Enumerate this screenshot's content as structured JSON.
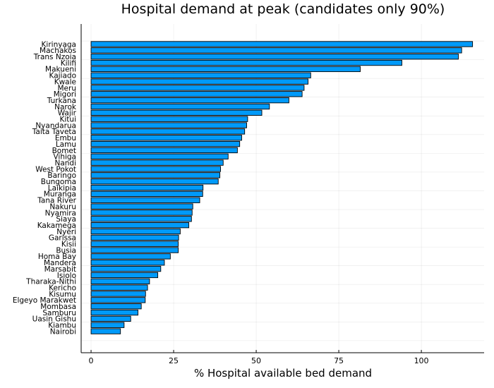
{
  "chart_data": {
    "type": "bar",
    "orientation": "horizontal",
    "title": "Hospital demand at peak (candidates only 90%)",
    "xlabel": "% Hospital available bed demand",
    "ylabel": "",
    "xlim": [
      -3,
      119
    ],
    "xticks": [
      0,
      25,
      50,
      75,
      100
    ],
    "grid": true,
    "legend": "none",
    "bar_color": "#009af9",
    "categories": [
      "Kirinyaga",
      "Machakos",
      "Trans Nzoia",
      "Kilifi",
      "Makueni",
      "Kajiado",
      "Kwale",
      "Meru",
      "Migori",
      "Turkana",
      "Narok",
      "Wajir",
      "Kitui",
      "Nyandarua",
      "Taita Taveta",
      "Embu",
      "Lamu",
      "Bomet",
      "Vihiga",
      "Nandi",
      "West Pokot",
      "Baringo",
      "Bungoma",
      "Laikipia",
      "Muranga",
      "Tana River",
      "Nakuru",
      "Nyamira",
      "Siaya",
      "Kakamega",
      "Nyeri",
      "Garissa",
      "Kisii",
      "Busia",
      "Homa Bay",
      "Mandera",
      "Marsabit",
      "Isiolo",
      "Tharaka-Nithi",
      "Kericho",
      "Kisumu",
      "Elgeyo Marakwet",
      "Mombasa",
      "Samburu",
      "Uasin Gishu",
      "Kiambu",
      "Nairobi"
    ],
    "values": [
      115.5,
      112.2,
      111.2,
      94.1,
      81.5,
      66.5,
      65.7,
      64.5,
      63.9,
      59.9,
      54.0,
      51.7,
      47.4,
      47.1,
      46.5,
      45.6,
      45.0,
      44.3,
      41.5,
      40.0,
      39.2,
      39.0,
      38.5,
      33.9,
      33.8,
      32.9,
      30.8,
      30.6,
      30.4,
      29.6,
      27.0,
      26.5,
      26.4,
      26.4,
      24.0,
      22.2,
      21.1,
      20.2,
      17.7,
      17.1,
      16.5,
      16.4,
      15.2,
      14.2,
      12.0,
      10.0,
      8.9
    ]
  }
}
